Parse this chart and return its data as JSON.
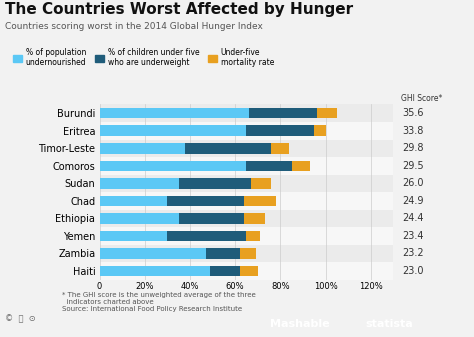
{
  "title": "The Countries Worst Affected by Hunger",
  "subtitle": "Countries scoring worst in the 2014 Global Hunger Index",
  "countries": [
    "Burundi",
    "Eritrea",
    "Timor-Leste",
    "Comoros",
    "Sudan",
    "Chad",
    "Ethiopia",
    "Yemen",
    "Zambia",
    "Haiti"
  ],
  "ghi_scores": [
    35.6,
    33.8,
    29.8,
    29.5,
    26.0,
    24.9,
    24.4,
    23.4,
    23.2,
    23.0
  ],
  "undernourished": [
    66,
    65,
    38,
    65,
    35,
    30,
    35,
    30,
    47,
    49
  ],
  "underweight": [
    30,
    30,
    38,
    20,
    32,
    34,
    29,
    35,
    15,
    13
  ],
  "mortality": [
    9,
    5,
    8,
    8,
    9,
    14,
    9,
    6,
    7,
    8
  ],
  "color_undernourished": "#5bc8f5",
  "color_underweight": "#1f5c7a",
  "color_mortality": "#e8a020",
  "color_bg_light": "#ebebeb",
  "color_bg_white": "#f7f7f7",
  "color_fig_bg": "#f2f2f2",
  "xticks": [
    0,
    20,
    40,
    60,
    80,
    100,
    120
  ],
  "xtick_labels": [
    "0",
    "20%",
    "40%",
    "60%",
    "80%",
    "100%",
    "120%"
  ],
  "xlim": [
    0,
    130
  ],
  "legend_labels": [
    "% of population\nundernourished",
    "% of children under five\nwho are underweight",
    "Under-five\nmortality rate"
  ],
  "footnote": "* The GHI score is the unweighted average of the three\n  indicators charted above\nSource: International Food Policy Research Institute"
}
